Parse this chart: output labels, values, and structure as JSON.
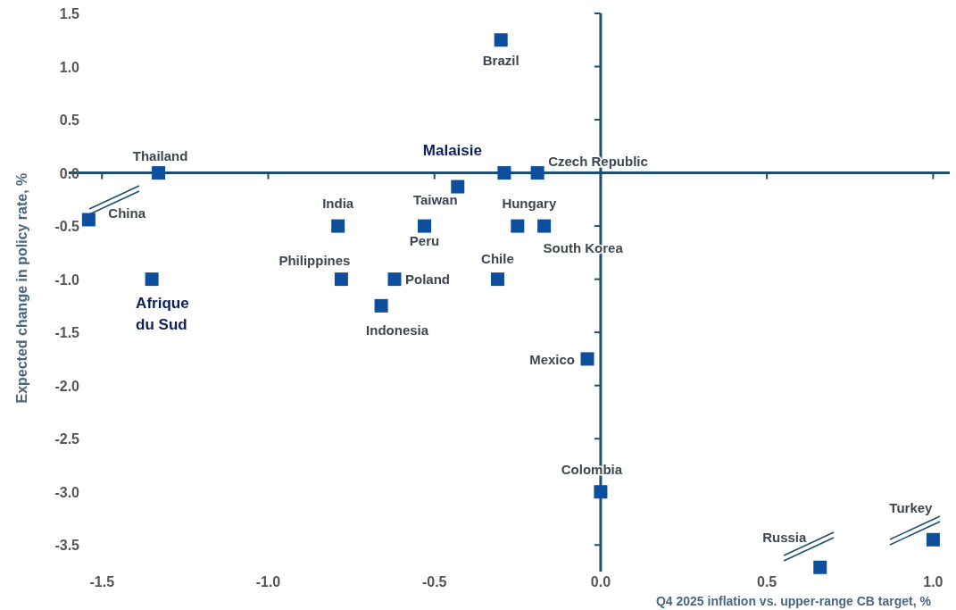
{
  "chart_data": {
    "type": "scatter",
    "xlabel": "Q4 2025 inflation vs. upper-range CB target, %",
    "ylabel": "Expected change in policy rate, %",
    "marker": "square",
    "xlim": [
      -1.6,
      1.05
    ],
    "xticks": [
      -1.5,
      {
        "value": -1,
        "label": "-1.0"
      },
      -0.5,
      {
        "value": 0,
        "label": "0.0"
      },
      0.5,
      {
        "value": 1,
        "label": "1.0"
      }
    ],
    "ylim": [
      -3.75,
      1.5
    ],
    "yticks": [
      1.5,
      {
        "value": 1,
        "label": "1.0"
      },
      0.5,
      {
        "value": 0,
        "label": "0.0"
      },
      -0.5,
      {
        "value": -1,
        "label": "-1.0"
      },
      -1.5,
      {
        "value": -2,
        "label": "-2.0"
      },
      -2.5,
      {
        "value": -3,
        "label": "-3.0"
      },
      -3.5
    ],
    "series": [
      {
        "color": "#0d4f9c",
        "x": [
          -0.3,
          -1.33,
          -1.54,
          -1.35,
          -0.79,
          -0.78,
          -0.62,
          -0.66,
          -0.53,
          -0.43,
          -0.29,
          -0.19,
          -0.25,
          -0.17,
          -0.31,
          -0.04,
          0,
          0.66,
          1.0
        ],
        "values": [
          1.25,
          0,
          -0.44,
          -1.0,
          -0.5,
          -1.0,
          -1.0,
          -1.25,
          -0.5,
          -0.13,
          0,
          0,
          -0.5,
          -0.5,
          -1.0,
          -1.75,
          -3.0,
          -3.71,
          -3.45
        ]
      }
    ],
    "annotations": [
      {
        "text": "Brazil",
        "x": -0.3,
        "y": 1.25
      },
      {
        "text": "Thailand",
        "x": -1.33,
        "y": 0
      },
      {
        "text": "China",
        "x": -1.54,
        "y": -0.44
      },
      {
        "text": "Afrique du Sud",
        "x": -1.35,
        "y": -1.0
      },
      {
        "text": "India",
        "x": -0.79,
        "y": -0.5
      },
      {
        "text": "Philippines",
        "x": -0.78,
        "y": -1.0
      },
      {
        "text": "Poland",
        "x": -0.62,
        "y": -1.0
      },
      {
        "text": "Indonesia",
        "x": -0.66,
        "y": -1.25
      },
      {
        "text": "Peru",
        "x": -0.53,
        "y": -0.5
      },
      {
        "text": "Taiwan",
        "x": -0.43,
        "y": -0.13
      },
      {
        "text": "Malaisie",
        "x": -0.29,
        "y": 0
      },
      {
        "text": "Czech Republic",
        "x": -0.19,
        "y": 0
      },
      {
        "text": "Hungary",
        "x": -0.25,
        "y": -0.5
      },
      {
        "text": "South Korea",
        "x": -0.17,
        "y": -0.5
      },
      {
        "text": "Chile",
        "x": -0.31,
        "y": -1.0
      },
      {
        "text": "Mexico",
        "x": -0.04,
        "y": -1.75
      },
      {
        "text": "Colombia",
        "x": 0,
        "y": -3.0
      },
      {
        "text": "Russia",
        "x": 0.66,
        "y": -3.71
      },
      {
        "text": "Turkey",
        "x": 1.0,
        "y": -3.45
      }
    ]
  }
}
